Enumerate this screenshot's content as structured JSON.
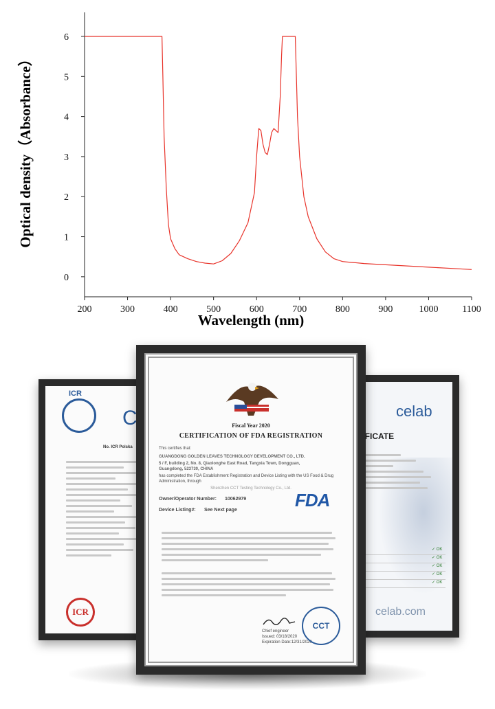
{
  "chart_data": {
    "type": "line",
    "xlabel": "Wavelength (nm)",
    "ylabel": "Optical density（Absorbance）",
    "xlim": [
      200,
      1100
    ],
    "ylim": [
      -0.5,
      6.6
    ],
    "xticks": [
      200,
      300,
      400,
      500,
      600,
      700,
      800,
      900,
      1000,
      1100
    ],
    "yticks": [
      0,
      1,
      2,
      3,
      4,
      5,
      6
    ],
    "grid": false,
    "legend": "none",
    "line_color": "#e8332a",
    "series": [
      {
        "x": [
          200,
          380,
          382,
          385,
          390,
          395,
          400,
          410,
          420,
          440,
          460,
          480,
          500,
          520,
          540,
          560,
          580,
          595,
          600,
          605,
          610,
          615,
          620,
          625,
          630,
          635,
          640,
          645,
          650,
          655,
          658,
          660,
          690,
          692,
          695,
          700,
          710,
          720,
          740,
          760,
          780,
          800,
          820,
          830,
          850,
          900,
          1000,
          1100
        ],
        "values": [
          6.0,
          6.0,
          5.0,
          3.5,
          2.2,
          1.3,
          0.95,
          0.7,
          0.55,
          0.45,
          0.38,
          0.34,
          0.32,
          0.4,
          0.58,
          0.9,
          1.35,
          2.1,
          3.0,
          3.7,
          3.65,
          3.3,
          3.1,
          3.05,
          3.3,
          3.6,
          3.7,
          3.65,
          3.6,
          4.5,
          5.5,
          6.0,
          6.0,
          5.2,
          4.0,
          3.0,
          2.0,
          1.5,
          0.95,
          0.62,
          0.45,
          0.38,
          0.36,
          0.35,
          0.33,
          0.3,
          0.24,
          0.18
        ]
      }
    ]
  },
  "fda_cert": {
    "fiscal_year": "Fiscal Year 2020",
    "title": "CERTIFICATION OF FDA REGISTRATION",
    "certifies": "This certifies that:",
    "company": "GUANGDONG GOLDEN LEAVES TECHNOLOGY DEVELOPMENT CO., LTD.",
    "address": "5 / F, building 2, No. 8, Qiaolonghe East Road, Tangxia Town, Dongguan,",
    "address2": "Guangdong, 523730, CHINA",
    "completed": "has completed the FDA Establishment Registration and Device Listing with the US Food & Drug Administration, through",
    "agent": "Shenzhen CCT Testing Technology Co., Ltd.",
    "owner_label": "Owner/Operator Number:",
    "owner_value": "10062979",
    "listing_label": "Device Listing#:",
    "listing_value": "See Next page",
    "fda_logo": "FDA",
    "stamp": "CCT",
    "chief": "Chief engineer",
    "issued": "Issued: 03/18/2020",
    "expiration": "Expiration Date:12/31/2020"
  },
  "icr_cert": {
    "logo": "ICR",
    "heading": "Ce",
    "no_label": "No. ICR Polska",
    "seal": "ICR"
  },
  "celab_cert": {
    "logo": "celab",
    "title": "TIFICATE",
    "footer": "celab.com",
    "checks": [
      "✓ OK",
      "✓ OK",
      "✓ OK",
      "✓ OK",
      "✓ OK"
    ]
  }
}
